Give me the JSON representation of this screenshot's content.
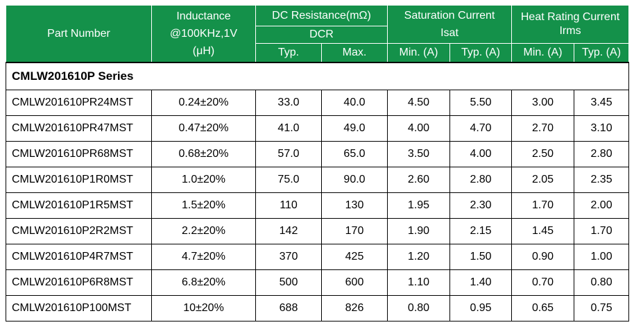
{
  "header": {
    "part_number": "Part Number",
    "inductance": {
      "line1": "Inductance",
      "line2": "@100KHz,1V",
      "line3": "(μH)"
    },
    "dc_resistance": {
      "title": "DC Resistance(mΩ)",
      "sub": "DCR",
      "typ": "Typ.",
      "max": "Max."
    },
    "saturation": {
      "line1": "Saturation Current",
      "line2": "Isat",
      "min": "Min. (A)",
      "typ": "Typ. (A)"
    },
    "heat": {
      "line1": "Heat Rating Current",
      "line2": "Irms",
      "min": "Min. (A)",
      "typ": "Typ. (A)"
    }
  },
  "series_title": "CMLW201610P Series",
  "rows": [
    {
      "part": "CMLW201610PR24MST",
      "inductance": "0.24±20%",
      "dcr_typ": "33.0",
      "dcr_max": "40.0",
      "isat_min": "4.50",
      "isat_typ": "5.50",
      "irms_min": "3.00",
      "irms_typ": "3.45"
    },
    {
      "part": "CMLW201610PR47MST",
      "inductance": "0.47±20%",
      "dcr_typ": "41.0",
      "dcr_max": "49.0",
      "isat_min": "4.00",
      "isat_typ": "4.70",
      "irms_min": "2.70",
      "irms_typ": "3.10"
    },
    {
      "part": "CMLW201610PR68MST",
      "inductance": "0.68±20%",
      "dcr_typ": "57.0",
      "dcr_max": "65.0",
      "isat_min": "3.50",
      "isat_typ": "4.00",
      "irms_min": "2.50",
      "irms_typ": "2.80"
    },
    {
      "part": "CMLW201610P1R0MST",
      "inductance": "1.0±20%",
      "dcr_typ": "75.0",
      "dcr_max": "90.0",
      "isat_min": "2.60",
      "isat_typ": "2.80",
      "irms_min": "2.05",
      "irms_typ": "2.35"
    },
    {
      "part": "CMLW201610P1R5MST",
      "inductance": "1.5±20%",
      "dcr_typ": "110",
      "dcr_max": "130",
      "isat_min": "1.95",
      "isat_typ": "2.30",
      "irms_min": "1.70",
      "irms_typ": "2.00"
    },
    {
      "part": "CMLW201610P2R2MST",
      "inductance": "2.2±20%",
      "dcr_typ": "142",
      "dcr_max": "170",
      "isat_min": "1.90",
      "isat_typ": "2.15",
      "irms_min": "1.45",
      "irms_typ": "1.70"
    },
    {
      "part": "CMLW201610P4R7MST",
      "inductance": "4.7±20%",
      "dcr_typ": "370",
      "dcr_max": "425",
      "isat_min": "1.20",
      "isat_typ": "1.50",
      "irms_min": "0.90",
      "irms_typ": "1.00"
    },
    {
      "part": "CMLW201610P6R8MST",
      "inductance": "6.8±20%",
      "dcr_typ": "500",
      "dcr_max": "600",
      "isat_min": "1.10",
      "isat_typ": "1.40",
      "irms_min": "0.70",
      "irms_typ": "0.80"
    },
    {
      "part": "CMLW201610P100MST",
      "inductance": "10±20%",
      "dcr_typ": "688",
      "dcr_max": "826",
      "isat_min": "0.80",
      "isat_typ": "0.95",
      "irms_min": "0.65",
      "irms_typ": "0.75"
    }
  ],
  "colors": {
    "header_bg": "#14914a",
    "header_text": "#ffffff",
    "grid": "#000000"
  }
}
